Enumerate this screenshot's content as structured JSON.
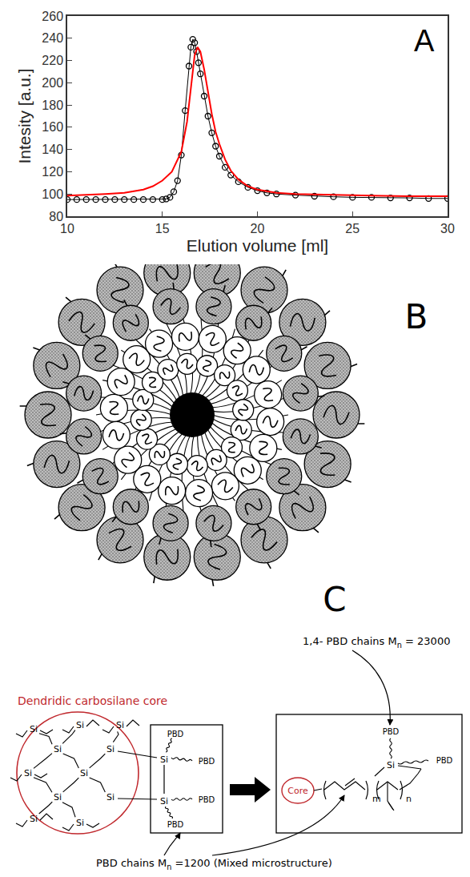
{
  "chart_data": {
    "type": "scatter",
    "panel_label": "A",
    "x_label": "Elution volume [ml]",
    "y_label": "Intesity [a.u.]",
    "xlim": [
      10,
      30
    ],
    "xticks": [
      10,
      15,
      20,
      25,
      30
    ],
    "ylim": [
      80,
      260
    ],
    "yticks": [
      80,
      100,
      120,
      140,
      160,
      180,
      200,
      220,
      240,
      260
    ],
    "grid": false,
    "series": [
      {
        "color": "#000000",
        "marker": "circle-open",
        "line_style": "solid",
        "x": [
          10,
          10.5,
          11,
          11.5,
          12,
          12.5,
          13,
          13.5,
          14,
          14.5,
          15,
          15.2,
          15.4,
          15.6,
          15.8,
          16.0,
          16.2,
          16.4,
          16.5,
          16.6,
          16.7,
          16.8,
          16.9,
          17.0,
          17.2,
          17.4,
          17.6,
          17.8,
          18.0,
          18.3,
          18.6,
          19.0,
          19.5,
          20,
          20.5,
          21,
          22,
          23,
          24,
          25,
          26,
          27,
          28,
          29,
          30
        ],
        "values": [
          95,
          95,
          95,
          95,
          95,
          95,
          95,
          95,
          95,
          95,
          95,
          95.5,
          97,
          102,
          112,
          135,
          175,
          215,
          232,
          239,
          236,
          228,
          218,
          208,
          188,
          170,
          155,
          143,
          134,
          124,
          117,
          111,
          106,
          103,
          101,
          100,
          99,
          98,
          97.5,
          97,
          97,
          96.5,
          96.5,
          96,
          96
        ]
      },
      {
        "color": "#ff0000",
        "line_style": "solid",
        "x": [
          10,
          11,
          12,
          13,
          14,
          14.5,
          15,
          15.5,
          16,
          16.3,
          16.5,
          16.7,
          16.85,
          17.0,
          17.2,
          17.4,
          17.6,
          17.8,
          18.0,
          18.3,
          18.6,
          19,
          19.5,
          20,
          21,
          22,
          24,
          26,
          28,
          30
        ],
        "values": [
          98.5,
          99,
          100,
          101,
          104,
          107,
          112,
          120,
          138,
          165,
          195,
          225,
          232,
          228,
          212,
          192,
          172,
          156,
          145,
          131,
          121,
          113,
          107,
          104,
          101,
          100,
          99,
          98.5,
          98,
          98
        ]
      }
    ]
  },
  "panel_b": {
    "label": "B"
  },
  "panel_c": {
    "label": "C",
    "core_title": "Dendridic carbosilane core",
    "atom": "Si",
    "chain": "PBD",
    "core": "Core",
    "repeat_units": [
      "m",
      "n"
    ],
    "long_chains": {
      "text": "1,4- PBD chains M",
      "sub": "n",
      "rest": " = 23000"
    },
    "short_chains": {
      "text": "PBD chains M",
      "sub": "n",
      "rest": " =1200 (Mixed microstructure)"
    }
  }
}
